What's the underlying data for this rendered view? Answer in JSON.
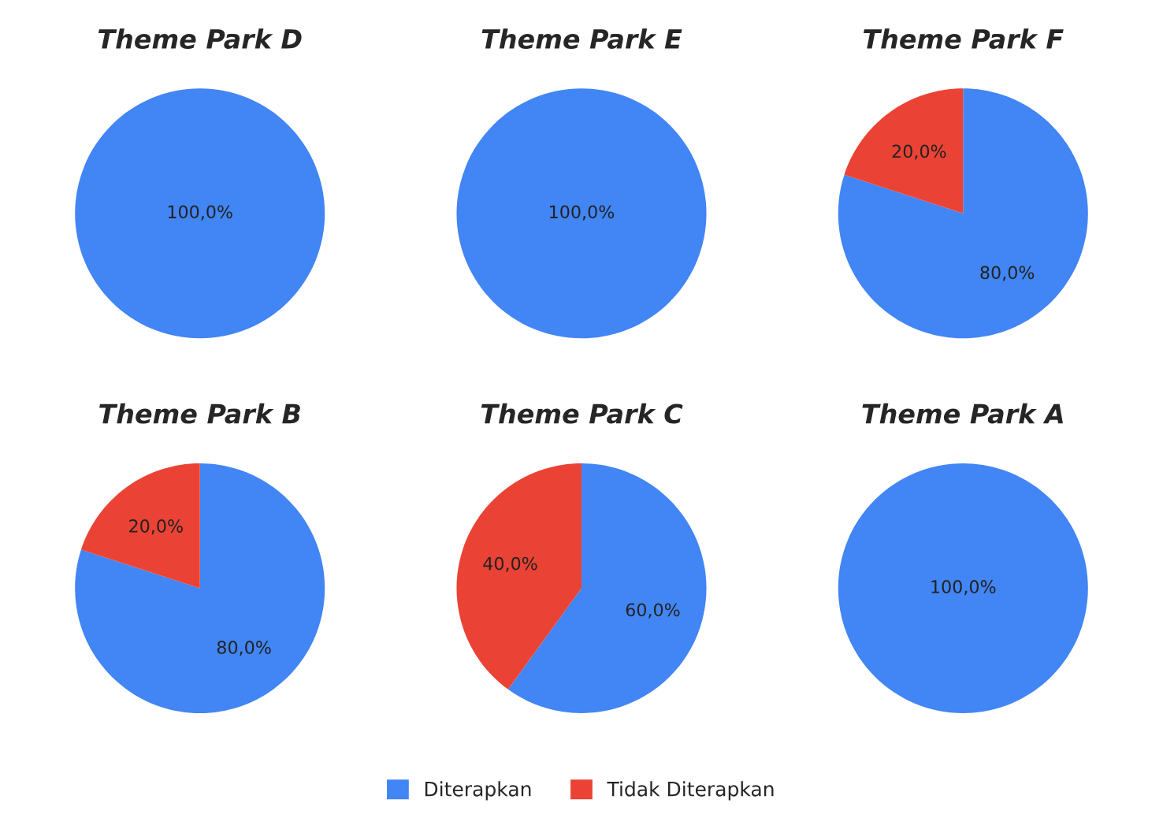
{
  "chart_data": [
    {
      "type": "pie",
      "title": "Theme Park D",
      "categories": [
        null,
        null
      ],
      "values": [
        100,
        0
      ],
      "colors": [
        "#4285f4",
        "#ea4335"
      ],
      "value_labels": [
        "100,0%",
        null
      ]
    },
    {
      "type": "pie",
      "title": "Theme Park E",
      "categories": [
        null,
        null
      ],
      "values": [
        100,
        0
      ],
      "colors": [
        "#4285f4",
        "#ea4335"
      ],
      "value_labels": [
        "100,0%",
        null
      ]
    },
    {
      "type": "pie",
      "title": "Theme Park F",
      "categories": [
        null,
        null
      ],
      "values": [
        80,
        20
      ],
      "colors": [
        "#4285f4",
        "#ea4335"
      ],
      "value_labels": [
        "80,0%",
        "20,0%"
      ]
    },
    {
      "type": "pie",
      "title": "Theme Park B",
      "categories": [
        null,
        null
      ],
      "values": [
        80,
        20
      ],
      "colors": [
        "#4285f4",
        "#ea4335"
      ],
      "value_labels": [
        "80,0%",
        "20,0%"
      ]
    },
    {
      "type": "pie",
      "title": "Theme Park C",
      "categories": [
        "Diterapkan",
        "Tidak Diterapkan"
      ],
      "values": [
        60,
        40
      ],
      "colors": [
        "#4285f4",
        "#ea4335"
      ],
      "value_labels": [
        "60,0%",
        "40,0%"
      ],
      "legend": "bottom"
    },
    {
      "type": "pie",
      "title": "Theme Park A",
      "categories": [
        null,
        null
      ],
      "values": [
        100,
        0
      ],
      "colors": [
        "#4285f4",
        "#ea4335"
      ],
      "value_labels": [
        "100,0%",
        null
      ]
    }
  ]
}
